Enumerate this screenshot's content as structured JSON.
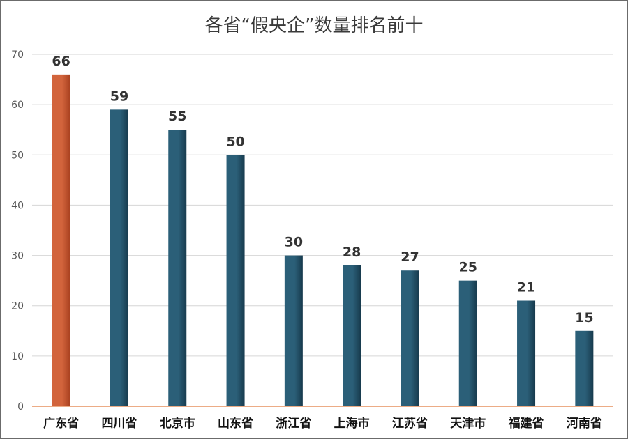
{
  "chart_data": {
    "type": "bar",
    "title": "各省“假央企”数量排名前十",
    "xlabel": "",
    "ylabel": "",
    "categories": [
      "广东省",
      "四川省",
      "北京市",
      "山东省",
      "浙江省",
      "上海市",
      "江苏省",
      "天津市",
      "福建省",
      "河南省"
    ],
    "values": [
      66,
      59,
      55,
      50,
      30,
      28,
      27,
      25,
      21,
      15
    ],
    "ylim": [
      0,
      70
    ],
    "yticks": [
      0,
      10,
      20,
      30,
      40,
      50,
      60,
      70
    ],
    "grid": true,
    "legend": "none",
    "colors": {
      "highlight_top": "#d2643c",
      "highlight_bottom": "#a8401f",
      "bar_top": "#2b5f78",
      "bar_bottom": "#173a4d",
      "baseline": "#e07a3e"
    },
    "highlight_index": 0
  }
}
